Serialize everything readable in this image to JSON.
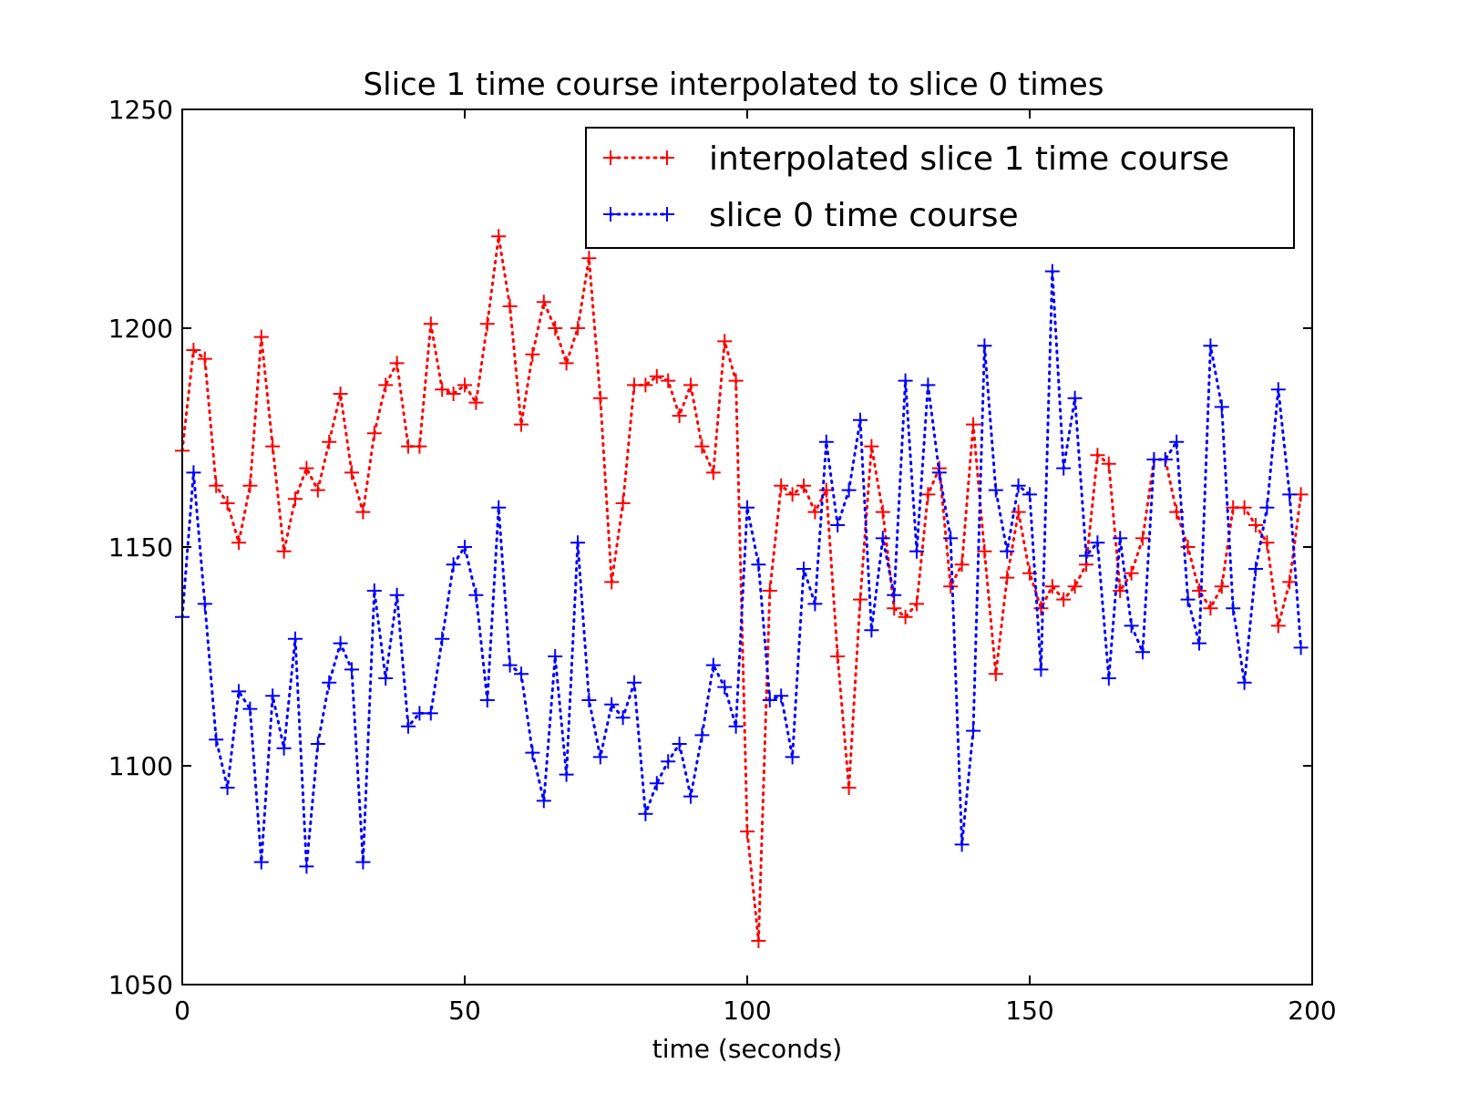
{
  "chart_data": {
    "type": "line",
    "title": "Slice 1 time course interpolated to slice 0 times",
    "xlabel": "time (seconds)",
    "ylabel": "",
    "xlim": [
      0,
      200
    ],
    "ylim": [
      1050,
      1250
    ],
    "xticks": [
      0,
      50,
      100,
      150,
      200
    ],
    "yticks": [
      1050,
      1100,
      1150,
      1200,
      1250
    ],
    "xtick_labels": [
      "0",
      "50",
      "100",
      "150",
      "200"
    ],
    "ytick_labels": [
      "1050",
      "1100",
      "1150",
      "1200",
      "1250"
    ],
    "grid": false,
    "legend_position": "top-right",
    "x": [
      0,
      2,
      4,
      6,
      8,
      10,
      12,
      14,
      16,
      18,
      20,
      22,
      24,
      26,
      28,
      30,
      32,
      34,
      36,
      38,
      40,
      42,
      44,
      46,
      48,
      50,
      52,
      54,
      56,
      58,
      60,
      62,
      64,
      66,
      68,
      70,
      72,
      74,
      76,
      78,
      80,
      82,
      84,
      86,
      88,
      90,
      92,
      94,
      96,
      98,
      100,
      102,
      104,
      106,
      108,
      110,
      112,
      114,
      116,
      118,
      120,
      122,
      124,
      126,
      128,
      130,
      132,
      134,
      136,
      138,
      140,
      142,
      144,
      146,
      148,
      150,
      152,
      154,
      156,
      158,
      160,
      162,
      164,
      166,
      168,
      170,
      172,
      174,
      176,
      178,
      180,
      182,
      184,
      186,
      188,
      190,
      192,
      194,
      196,
      198
    ],
    "series": [
      {
        "name": "interpolated slice 1 time course",
        "color": "#ff0000",
        "values": [
          1172,
          1195,
          1193,
          1164,
          1160,
          1151,
          1164,
          1198,
          1173,
          1149,
          1161,
          1168,
          1163,
          1174,
          1185,
          1167,
          1158,
          1176,
          1187,
          1192,
          1173,
          1173,
          1201,
          1186,
          1185,
          1187,
          1183,
          1201,
          1221,
          1205,
          1178,
          1194,
          1206,
          1200,
          1192,
          1200,
          1216,
          1184,
          1142,
          1160,
          1187,
          1187,
          1189,
          1188,
          1180,
          1187,
          1173,
          1167,
          1197,
          1188,
          1085,
          1060,
          1140,
          1164,
          1162,
          1164,
          1158,
          1163,
          1125,
          1095,
          1138,
          1173,
          1158,
          1136,
          1134,
          1137,
          1162,
          1168,
          1141,
          1146,
          1178,
          1149,
          1121,
          1143,
          1158,
          1144,
          1136,
          1141,
          1138,
          1141,
          1146,
          1171,
          1169,
          1140,
          1144,
          1152,
          1170,
          1170,
          1158,
          1150,
          1140,
          1136,
          1141,
          1159,
          1159,
          1155,
          1151,
          1132,
          1142,
          1162
        ]
      },
      {
        "name": "slice 0 time course",
        "color": "#0000ff",
        "values": [
          1134,
          1167,
          1137,
          1106,
          1095,
          1117,
          1113,
          1078,
          1116,
          1104,
          1129,
          1077,
          1105,
          1119,
          1128,
          1122,
          1078,
          1140,
          1120,
          1139,
          1109,
          1112,
          1112,
          1129,
          1146,
          1150,
          1139,
          1115,
          1159,
          1123,
          1121,
          1103,
          1092,
          1125,
          1098,
          1151,
          1115,
          1102,
          1114,
          1111,
          1119,
          1089,
          1096,
          1101,
          1105,
          1093,
          1107,
          1123,
          1118,
          1109,
          1159,
          1146,
          1115,
          1116,
          1102,
          1145,
          1137,
          1174,
          1155,
          1163,
          1179,
          1131,
          1152,
          1139,
          1188,
          1149,
          1187,
          1167,
          1152,
          1082,
          1108,
          1196,
          1163,
          1149,
          1164,
          1162,
          1122,
          1213,
          1168,
          1184,
          1148,
          1151,
          1120,
          1152,
          1132,
          1126,
          1170,
          1170,
          1174,
          1138,
          1128,
          1196,
          1182,
          1136,
          1119,
          1145,
          1159,
          1186,
          1162,
          1127
        ]
      }
    ]
  }
}
